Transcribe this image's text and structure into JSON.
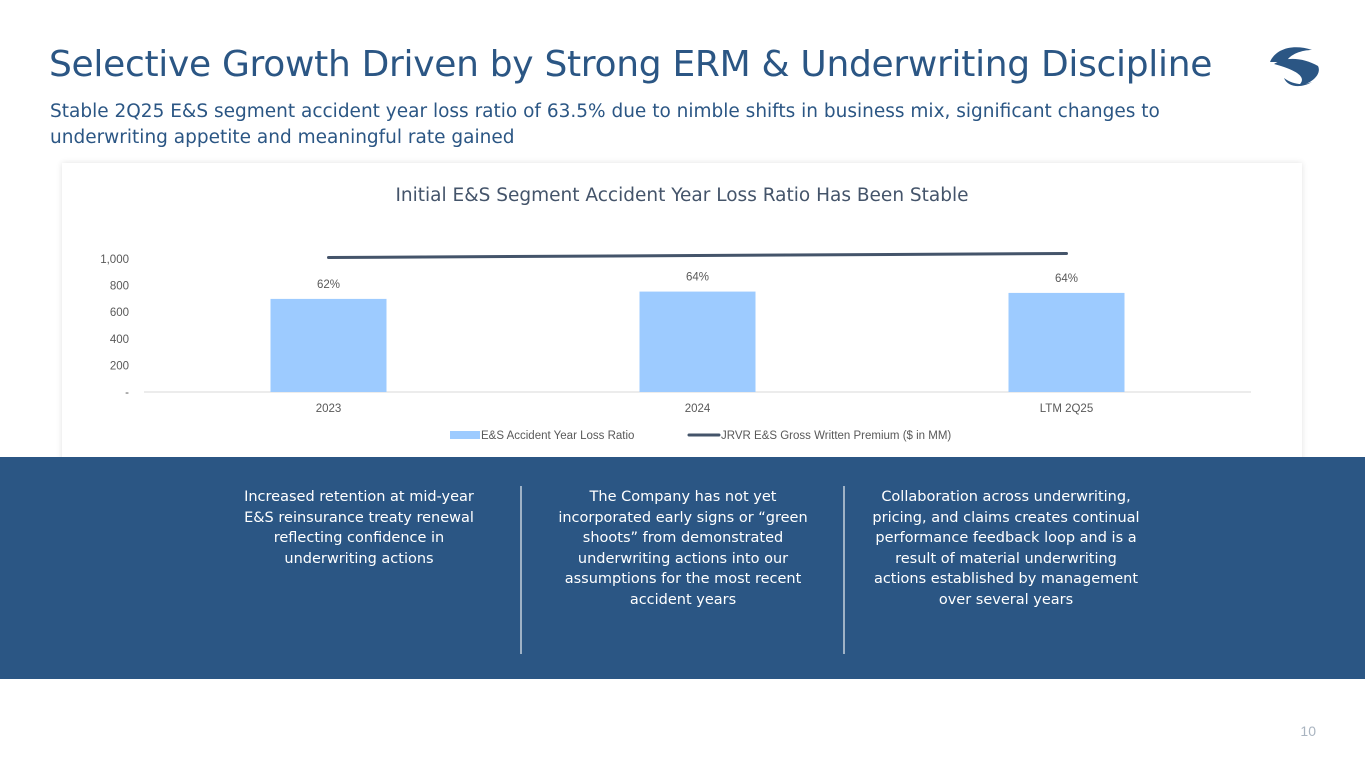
{
  "header": {
    "title": "Selective Growth Driven by Strong ERM & Underwriting Discipline",
    "subtitle": "Stable 2Q25 E&S segment accident year loss ratio of 63.5% due to nimble shifts in business mix, significant changes to underwriting appetite and meaningful rate gained",
    "logo_icon": "wave-s-logo-icon"
  },
  "colors": {
    "brand_blue": "#2B5684",
    "bar_fill": "#9DCBFF",
    "line_stroke": "#44546A",
    "axis_text": "#595959",
    "divider": "#9FB2C6"
  },
  "chart_data": {
    "type": "bar",
    "title": "Initial E&S Segment Accident Year Loss Ratio Has Been Stable",
    "categories": [
      "2023",
      "2024",
      "LTM 2Q25"
    ],
    "series": [
      {
        "name": "E&S Accident Year Loss Ratio",
        "kind": "bar",
        "values": [
          700,
          755,
          745
        ],
        "data_labels": [
          "62%",
          "64%",
          "64%"
        ]
      },
      {
        "name": "JRVR E&S Gross Written Premium ($ in MM)",
        "kind": "line",
        "values": [
          1000,
          1015,
          1030
        ]
      }
    ],
    "yticks": [
      0,
      200,
      400,
      600,
      800,
      1000
    ],
    "ytick_labels": [
      "-",
      "200",
      "400",
      "600",
      "800",
      "1,000"
    ],
    "ylim": [
      0,
      1000
    ],
    "xlabel": "",
    "ylabel": "",
    "legend": "bottom-center",
    "grid": false
  },
  "panels": [
    "Increased retention at mid-year E&S reinsurance treaty renewal reflecting confidence in underwriting actions",
    "The Company has not yet incorporated early signs or “green shoots” from demonstrated underwriting actions into our assumptions for the most recent accident years",
    "Collaboration across underwriting, pricing, and claims creates continual performance feedback loop and is a result of material underwriting actions established by management over several years"
  ],
  "footer": {
    "page_number": "10"
  }
}
